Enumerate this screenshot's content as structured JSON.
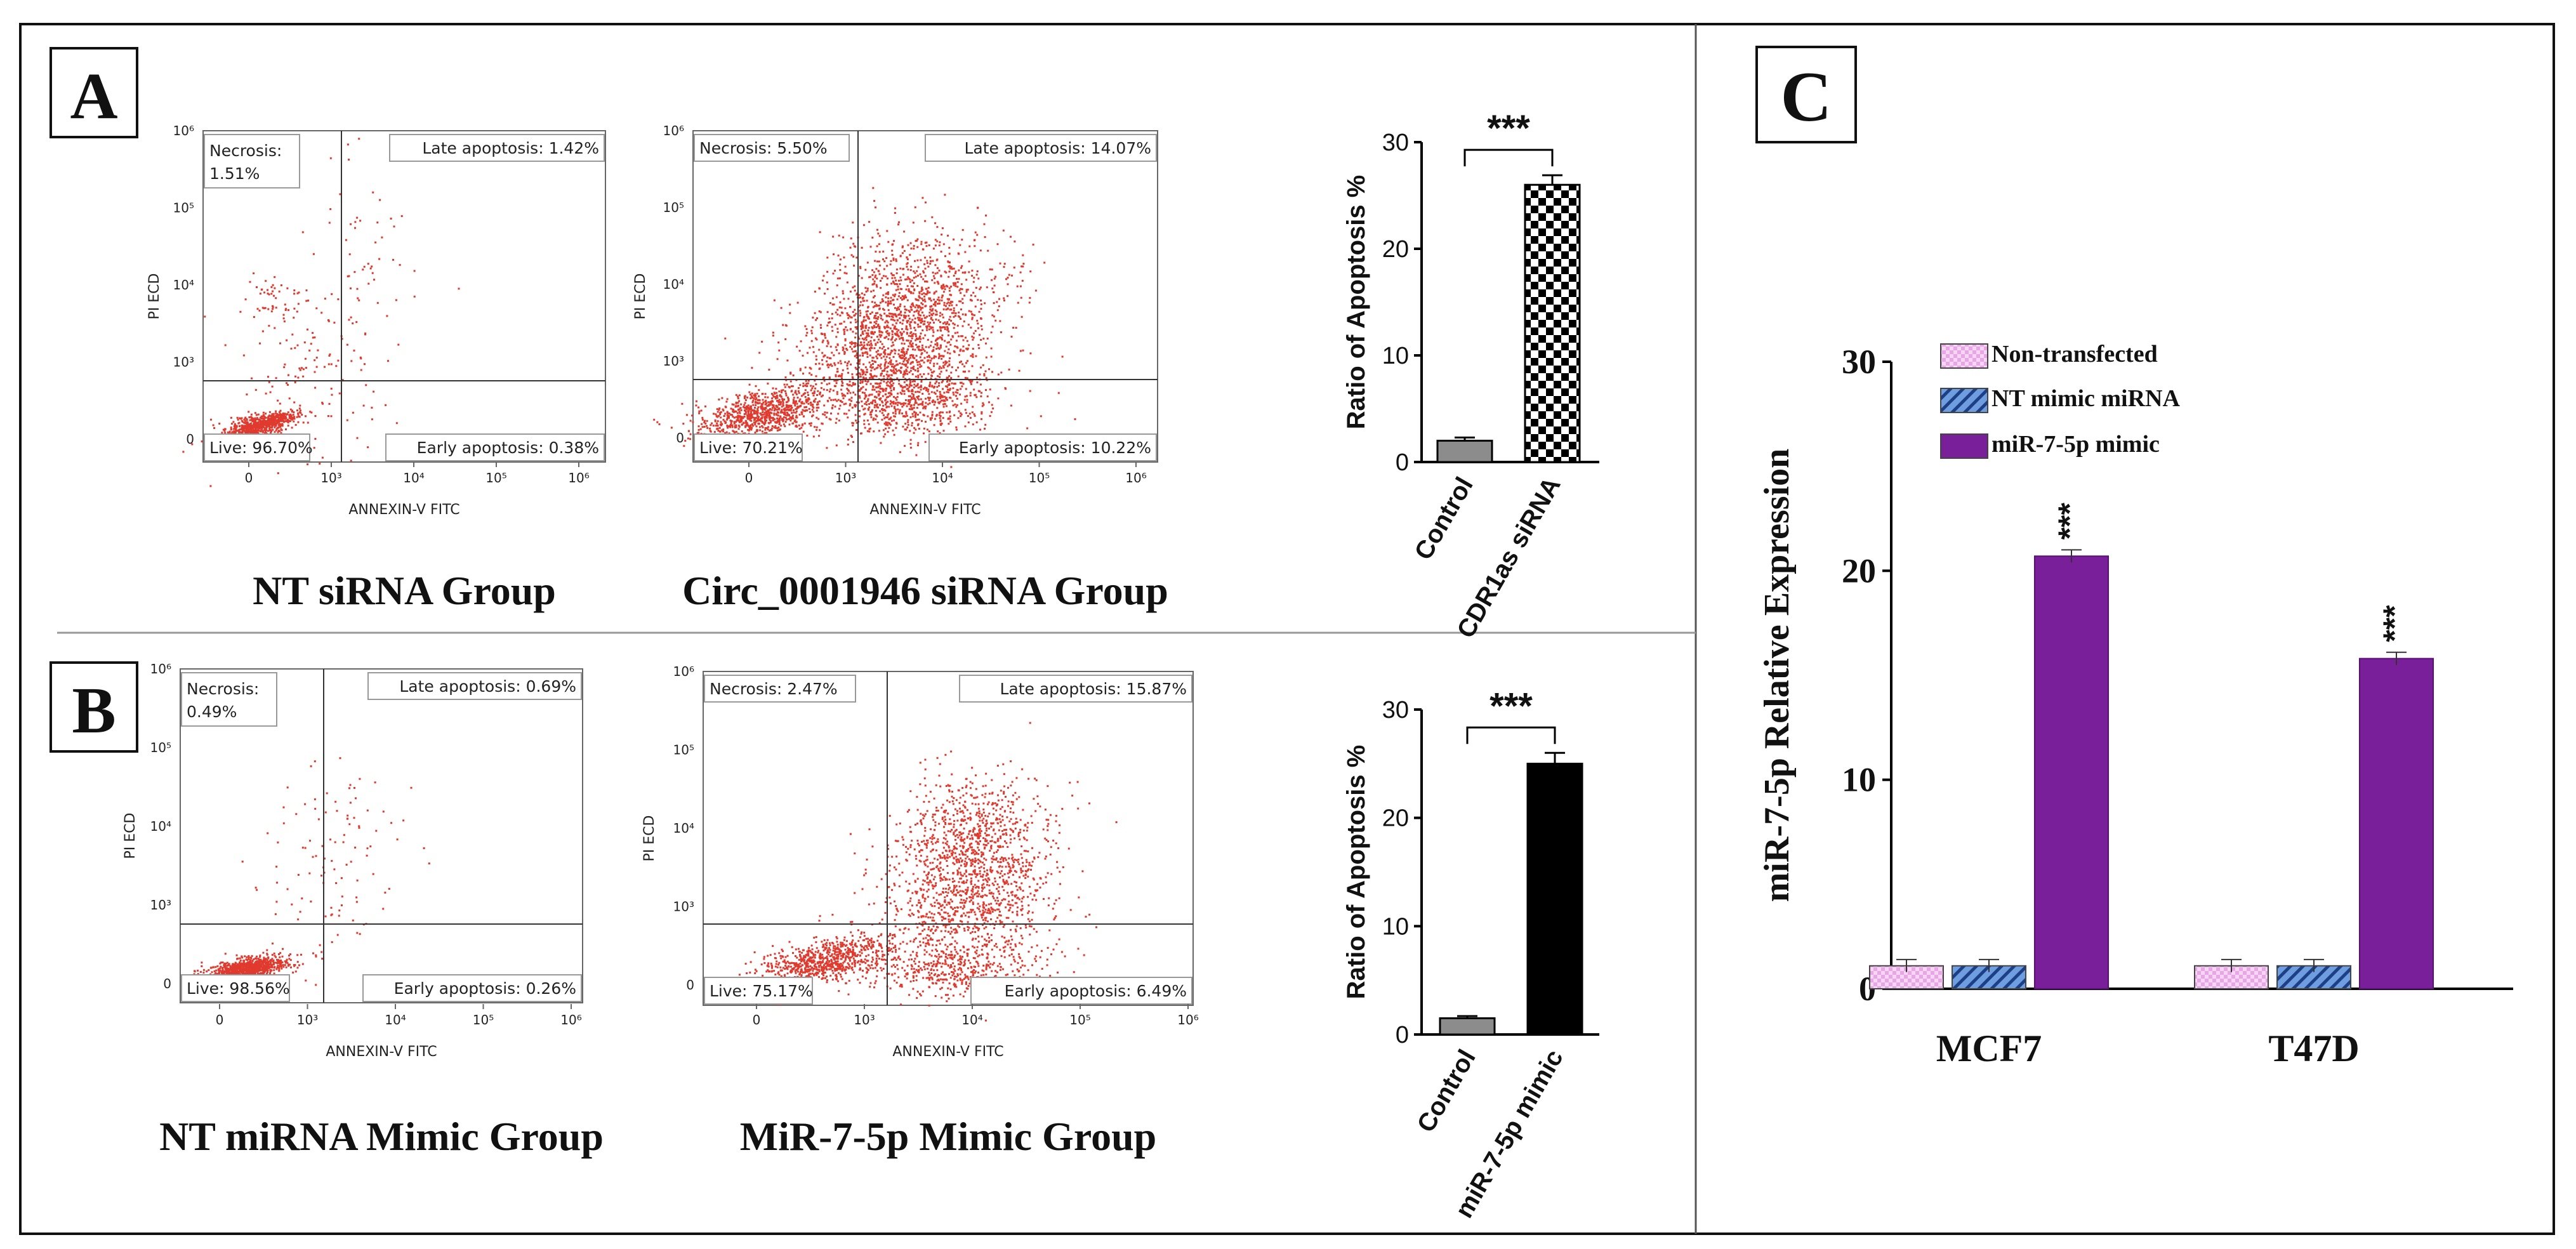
{
  "panel_labels": {
    "a": "A",
    "b": "B",
    "c": "C"
  },
  "colors": {
    "dot": "#e03a2e",
    "control_bar": "#8c8c8c",
    "black_bar": "#000000",
    "purple": "#7a1f9a",
    "pink": "#f2c6f0",
    "blue": "#5b8fd6"
  },
  "flow": {
    "xlabel": "ANNEXIN-V FITC",
    "ylabel": "PI ECD",
    "ticks_x": [
      "0",
      "10³",
      "10⁴",
      "10⁵",
      "10⁶"
    ],
    "ticks_y": [
      "0",
      "10³",
      "10⁴",
      "10⁵",
      "10⁶"
    ],
    "a1": {
      "q_nec": "Necrosis:",
      "q_nec2": "1.51%",
      "q_late": "Late apoptosis: 1.42%",
      "q_live": "Live: 96.70%",
      "q_early": "Early apoptosis: 0.38%",
      "caption": "NT siRNA Group"
    },
    "a2": {
      "q_nec": "Necrosis: 5.50%",
      "q_late": "Late apoptosis: 14.07%",
      "q_live": "Live: 70.21%",
      "q_early": "Early apoptosis: 10.22%",
      "caption": "Circ_0001946 siRNA Group"
    },
    "b1": {
      "q_nec": "Necrosis:",
      "q_nec2": "0.49%",
      "q_late": "Late apoptosis: 0.69%",
      "q_live": "Live: 98.56%",
      "q_early": "Early apoptosis: 0.26%",
      "caption": "NT miRNA Mimic Group"
    },
    "b2": {
      "q_nec": "Necrosis: 2.47%",
      "q_late": "Late apoptosis: 15.87%",
      "q_live": "Live: 75.17%",
      "q_early": "Early apoptosis: 6.49%",
      "caption": "MiR-7-5p Mimic Group"
    }
  },
  "chart_data": [
    {
      "id": "barA",
      "type": "bar",
      "ylabel": "Ratio of Apoptosis %",
      "categories": [
        "Control",
        "CDR1as siRNA"
      ],
      "values": [
        2,
        26
      ],
      "errors": [
        0.3,
        0.9
      ],
      "ylim": [
        0,
        30
      ],
      "yticks": [
        0,
        10,
        20,
        30
      ],
      "significance": "***"
    },
    {
      "id": "barB",
      "type": "bar",
      "ylabel": "Ratio of Apoptosis %",
      "categories": [
        "Control",
        "miR-7-5p mimic"
      ],
      "values": [
        1.5,
        25
      ],
      "errors": [
        0.2,
        1.0
      ],
      "ylim": [
        0,
        30
      ],
      "yticks": [
        0,
        10,
        20,
        30
      ],
      "significance": "***"
    },
    {
      "id": "barC",
      "type": "bar",
      "ylabel": "miR-7-5p Relative Expression",
      "categories": [
        "MCF7",
        "T47D"
      ],
      "series": [
        {
          "name": "Non-transfected",
          "values": [
            1.1,
            1.1
          ],
          "errors": [
            0.3,
            0.3
          ]
        },
        {
          "name": "NT mimic miRNA",
          "values": [
            1.1,
            1.1
          ],
          "errors": [
            0.3,
            0.3
          ]
        },
        {
          "name": "miR-7-5p mimic",
          "values": [
            20.7,
            15.8
          ],
          "errors": [
            0.3,
            0.3
          ]
        }
      ],
      "ylim": [
        0,
        30
      ],
      "yticks": [
        0,
        10,
        20,
        30
      ],
      "significance": "***",
      "legend": "top-left"
    }
  ]
}
